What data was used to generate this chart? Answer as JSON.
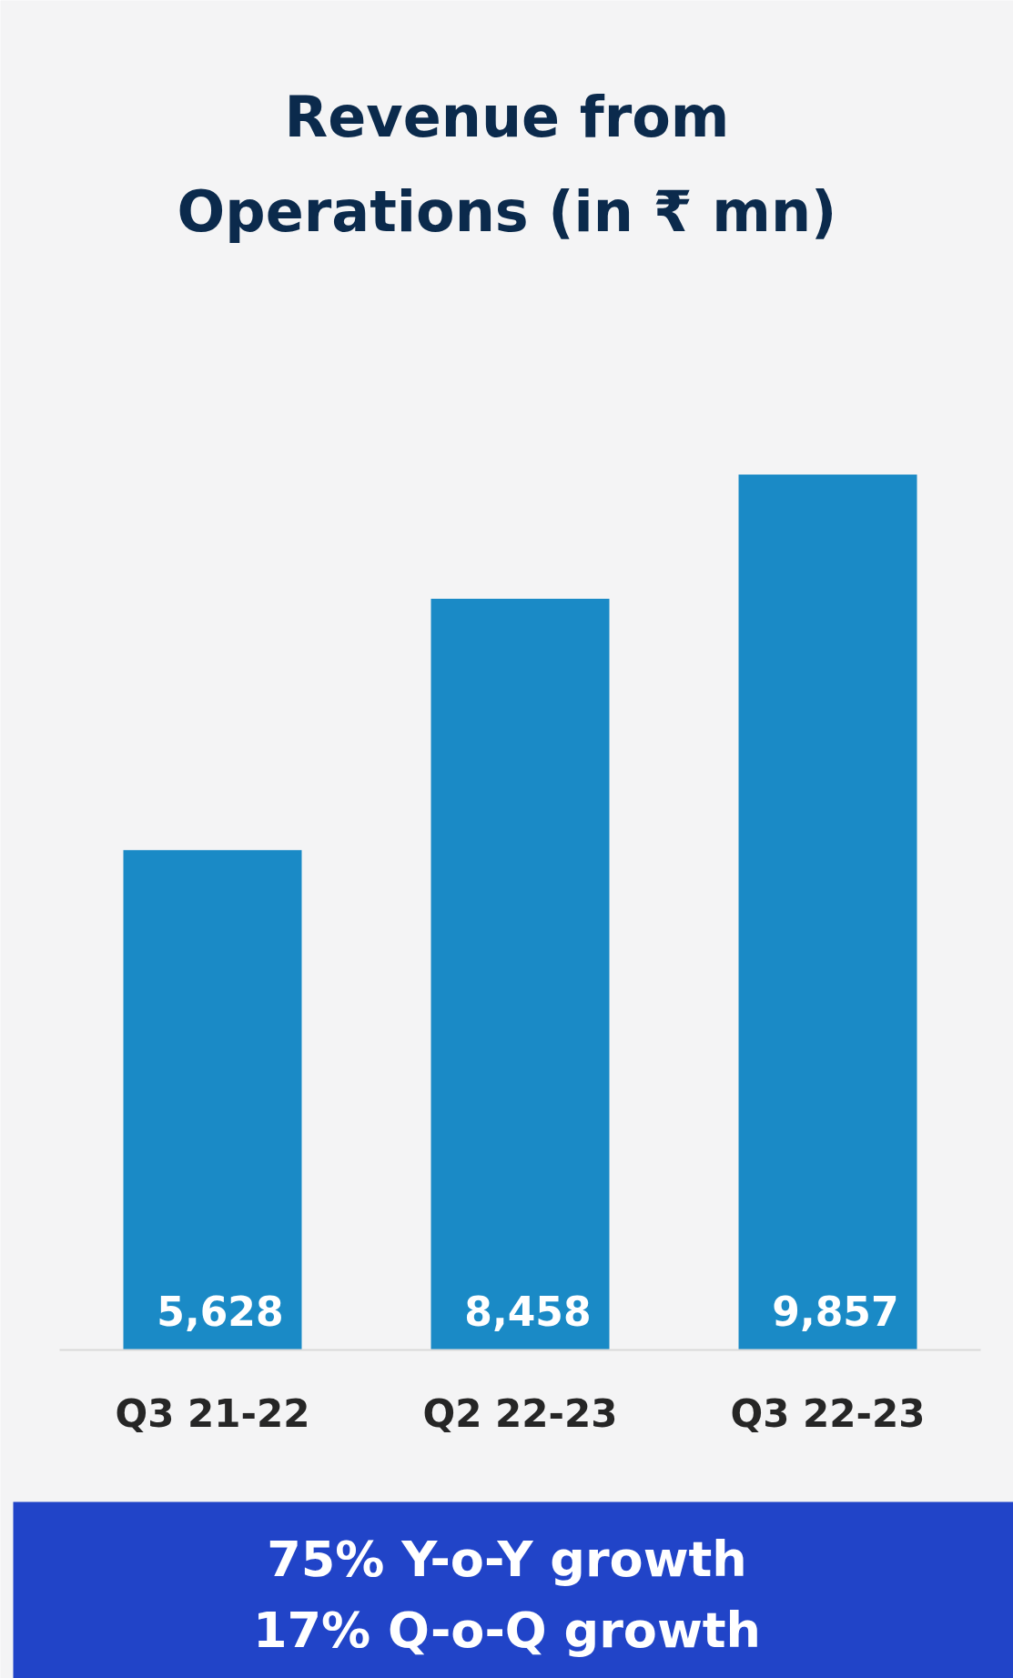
{
  "chart_data": {
    "type": "bar",
    "title": "Revenue from Operations (in ₹ mn)",
    "categories": [
      "Q3 21-22",
      "Q2 22-23",
      "Q3 22-23"
    ],
    "values": [
      5628,
      8458,
      9857
    ],
    "color": "#1a8ac6",
    "value_labels": [
      "5,628",
      "8,458",
      "9,857"
    ],
    "annotations": [
      "75% Y-o-Y growth",
      "17% Q-o-Q growth"
    ]
  }
}
